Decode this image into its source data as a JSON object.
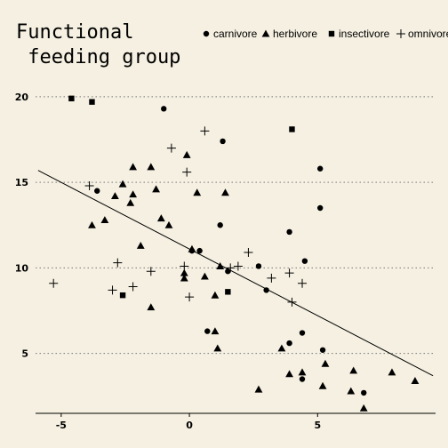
{
  "chart_data": {
    "type": "scatter",
    "title": "",
    "xlabel": "",
    "ylabel": "",
    "xlim": [
      -6.0,
      9.6
    ],
    "ylim": [
      1.5,
      21.5
    ],
    "x_ticks": [
      -5,
      0,
      5
    ],
    "y_ticks": [
      5,
      10,
      15,
      20
    ],
    "grid": "horizontal-dotted",
    "legend": {
      "title_lines": [
        "Functional",
        " feeding group"
      ],
      "position": "top",
      "entries": [
        {
          "label": "carnivore",
          "marker": "circle"
        },
        {
          "label": "herbivore",
          "marker": "triangle"
        },
        {
          "label": "insectivore",
          "marker": "square"
        },
        {
          "label": "omnivore",
          "marker": "plus"
        }
      ]
    },
    "trend_line": {
      "x": [
        -5.9,
        9.5
      ],
      "y": [
        15.7,
        3.7
      ]
    },
    "series": [
      {
        "name": "carnivore",
        "marker": "circle",
        "points": [
          [
            -1.0,
            19.3
          ],
          [
            1.3,
            17.4
          ],
          [
            -3.6,
            14.5
          ],
          [
            1.2,
            12.5
          ],
          [
            0.1,
            11.0
          ],
          [
            0.4,
            11.0
          ],
          [
            1.5,
            9.8
          ],
          [
            2.7,
            10.1
          ],
          [
            3.0,
            8.7
          ],
          [
            3.9,
            12.1
          ],
          [
            4.5,
            10.4
          ],
          [
            5.1,
            15.8
          ],
          [
            5.1,
            13.5
          ],
          [
            0.7,
            6.3
          ],
          [
            3.9,
            5.6
          ],
          [
            4.4,
            6.2
          ],
          [
            5.2,
            5.2
          ],
          [
            4.4,
            3.5
          ],
          [
            6.8,
            2.7
          ]
        ]
      },
      {
        "name": "herbivore",
        "marker": "triangle",
        "points": [
          [
            -2.2,
            15.9
          ],
          [
            -1.5,
            15.9
          ],
          [
            -2.6,
            14.9
          ],
          [
            -1.3,
            14.6
          ],
          [
            -2.9,
            14.2
          ],
          [
            -2.2,
            14.3
          ],
          [
            -2.3,
            13.8
          ],
          [
            0.3,
            14.4
          ],
          [
            1.4,
            14.4
          ],
          [
            -0.1,
            16.6
          ],
          [
            -1.1,
            12.9
          ],
          [
            -0.8,
            12.5
          ],
          [
            -3.3,
            12.8
          ],
          [
            -3.8,
            12.5
          ],
          [
            -1.9,
            11.3
          ],
          [
            0.1,
            11.1
          ],
          [
            -0.2,
            9.7
          ],
          [
            -0.2,
            9.4
          ],
          [
            0.6,
            9.5
          ],
          [
            1.2,
            10.1
          ],
          [
            1.0,
            8.4
          ],
          [
            -1.5,
            7.7
          ],
          [
            1.0,
            6.3
          ],
          [
            1.1,
            5.3
          ],
          [
            3.6,
            5.3
          ],
          [
            3.9,
            3.8
          ],
          [
            5.3,
            4.4
          ],
          [
            4.4,
            3.9
          ],
          [
            5.2,
            3.1
          ],
          [
            2.7,
            2.9
          ],
          [
            6.4,
            4.0
          ],
          [
            6.3,
            2.8
          ],
          [
            6.8,
            1.8
          ],
          [
            7.9,
            3.9
          ],
          [
            8.8,
            3.4
          ]
        ]
      },
      {
        "name": "insectivore",
        "marker": "square",
        "points": [
          [
            -4.6,
            19.9
          ],
          [
            -3.8,
            19.7
          ],
          [
            4.0,
            18.1
          ],
          [
            -2.6,
            8.4
          ],
          [
            1.5,
            8.6
          ]
        ]
      },
      {
        "name": "omnivore",
        "marker": "plus",
        "points": [
          [
            0.6,
            18.0
          ],
          [
            -0.7,
            17.0
          ],
          [
            -0.1,
            15.6
          ],
          [
            -3.9,
            14.8
          ],
          [
            -5.3,
            9.1
          ],
          [
            -2.8,
            10.3
          ],
          [
            -1.5,
            9.8
          ],
          [
            -3.0,
            8.7
          ],
          [
            -2.2,
            8.9
          ],
          [
            -0.2,
            10.1
          ],
          [
            0.0,
            8.3
          ],
          [
            1.6,
            10.0
          ],
          [
            1.9,
            10.1
          ],
          [
            2.3,
            10.9
          ],
          [
            3.2,
            9.4
          ],
          [
            3.9,
            9.7
          ],
          [
            4.0,
            8.0
          ],
          [
            4.4,
            9.1
          ]
        ]
      }
    ]
  }
}
